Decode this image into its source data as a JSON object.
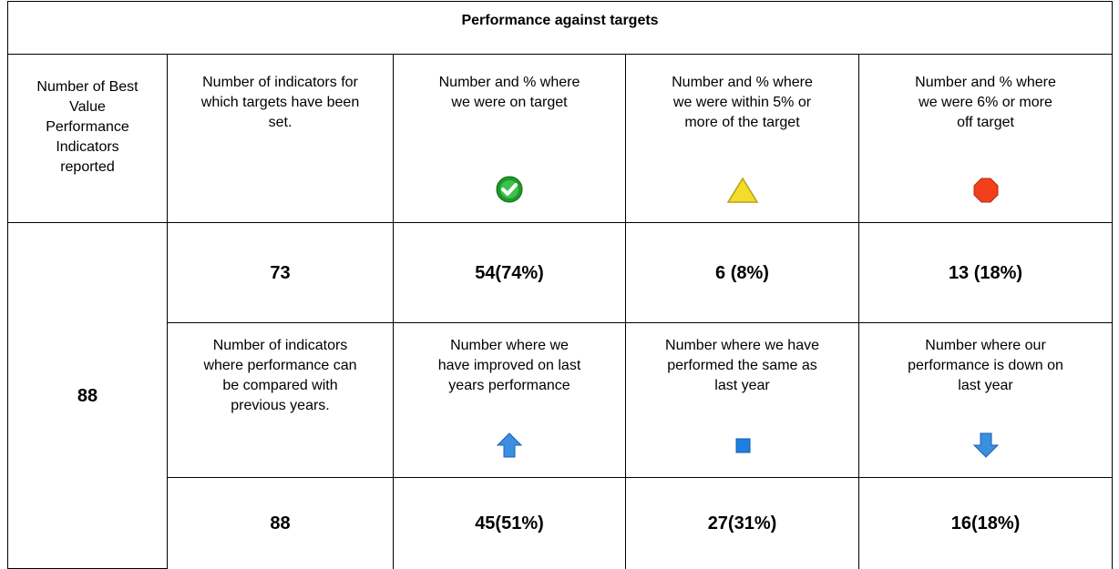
{
  "title": "Performance against targets",
  "first_column": {
    "header": "Number of Best Value Performance Indicators reported",
    "value": "88"
  },
  "targets": {
    "headers": [
      "Number of indicators for which targets have been set.",
      "Number and % where we were on target",
      "Number and % where we were within 5% or more of the target",
      "Number and % where we were 6% or more off target"
    ],
    "values": [
      "73",
      "54(74%)",
      "6 (8%)",
      "13 (18%)"
    ]
  },
  "comparison": {
    "headers": [
      "Number of indicators where performance can be compared with previous years.",
      "Number where we have improved on last years performance",
      "Number where we have performed the same as last year",
      "Number where our performance is down on last year"
    ],
    "values": [
      "88",
      "45(51%)",
      "27(31%)",
      "16(18%)"
    ]
  }
}
